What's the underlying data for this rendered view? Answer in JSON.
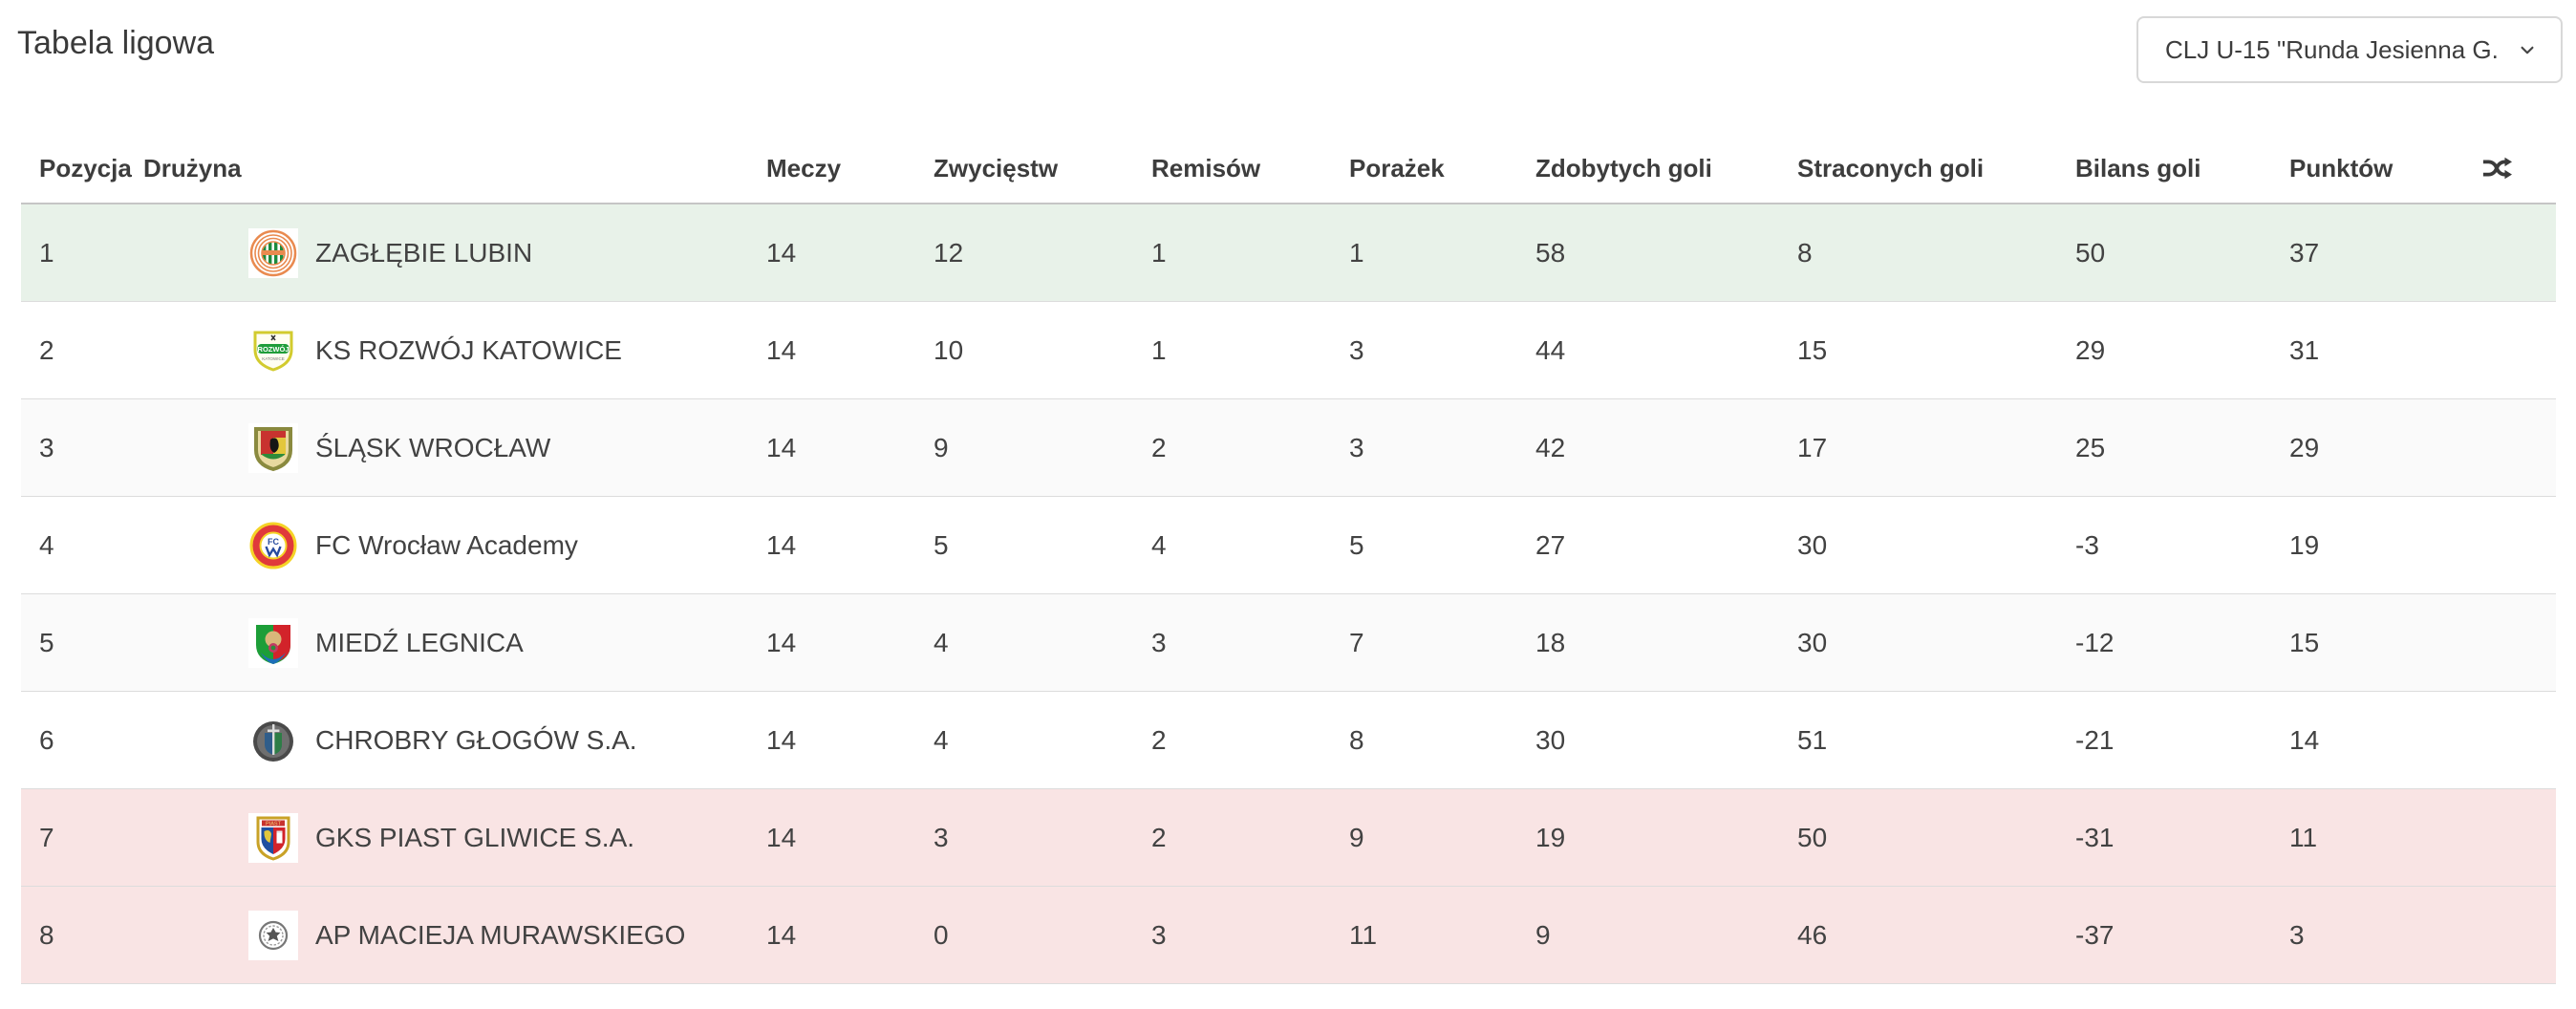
{
  "page": {
    "title": "Tabela ligowa"
  },
  "filter_dropdown": {
    "value": "CLJ U-15 \"Runda Jesienna G...",
    "chevron_icon": "chevron-down"
  },
  "colors": {
    "promotion_row_bg": "#e8f2e9",
    "relegation_row_bg": "#f9e4e4",
    "stripe_row_bg": "#fafafa",
    "default_row_bg": "#ffffff",
    "header_border": "#c5c5c5",
    "row_divider": "#dcdcdc",
    "text": "#424242"
  },
  "table": {
    "columns": [
      {
        "key": "position",
        "label": "Pozycja"
      },
      {
        "key": "team",
        "label": "Drużyna"
      },
      {
        "key": "matches",
        "label": "Meczy"
      },
      {
        "key": "wins",
        "label": "Zwycięstw"
      },
      {
        "key": "draws",
        "label": "Remisów"
      },
      {
        "key": "losses",
        "label": "Porażek"
      },
      {
        "key": "goals_for",
        "label": "Zdobytych goli"
      },
      {
        "key": "goals_against",
        "label": "Straconych goli"
      },
      {
        "key": "goal_balance",
        "label": "Bilans goli"
      },
      {
        "key": "points",
        "label": "Punktów"
      }
    ],
    "shuffle_icon": "shuffle",
    "rows": [
      {
        "position": "1",
        "team": "ZAGŁĘBIE LUBIN",
        "logo": "zaglebie-lubin-logo",
        "matches": "14",
        "wins": "12",
        "draws": "1",
        "losses": "1",
        "goals_for": "58",
        "goals_against": "8",
        "goal_balance": "50",
        "points": "37",
        "zone": "promotion"
      },
      {
        "position": "2",
        "team": "KS ROZWÓJ KATOWICE",
        "logo": "rozwoj-katowice-logo",
        "matches": "14",
        "wins": "10",
        "draws": "1",
        "losses": "3",
        "goals_for": "44",
        "goals_against": "15",
        "goal_balance": "29",
        "points": "31",
        "zone": "none"
      },
      {
        "position": "3",
        "team": "ŚLĄSK WROCŁAW",
        "logo": "slask-wroclaw-logo",
        "matches": "14",
        "wins": "9",
        "draws": "2",
        "losses": "3",
        "goals_for": "42",
        "goals_against": "17",
        "goal_balance": "25",
        "points": "29",
        "zone": "none"
      },
      {
        "position": "4",
        "team": "FC Wrocław Academy",
        "logo": "fc-wroclaw-academy-logo",
        "matches": "14",
        "wins": "5",
        "draws": "4",
        "losses": "5",
        "goals_for": "27",
        "goals_against": "30",
        "goal_balance": "-3",
        "points": "19",
        "zone": "none"
      },
      {
        "position": "5",
        "team": "MIEDŹ LEGNICA",
        "logo": "miedz-legnica-logo",
        "matches": "14",
        "wins": "4",
        "draws": "3",
        "losses": "7",
        "goals_for": "18",
        "goals_against": "30",
        "goal_balance": "-12",
        "points": "15",
        "zone": "none"
      },
      {
        "position": "6",
        "team": "CHROBRY GŁOGÓW S.A.",
        "logo": "chrobry-glogow-logo",
        "matches": "14",
        "wins": "4",
        "draws": "2",
        "losses": "8",
        "goals_for": "30",
        "goals_against": "51",
        "goal_balance": "-21",
        "points": "14",
        "zone": "none"
      },
      {
        "position": "7",
        "team": "GKS PIAST GLIWICE S.A.",
        "logo": "gks-piast-gliwice-logo",
        "matches": "14",
        "wins": "3",
        "draws": "2",
        "losses": "9",
        "goals_for": "19",
        "goals_against": "50",
        "goal_balance": "-31",
        "points": "11",
        "zone": "relegation"
      },
      {
        "position": "8",
        "team": "AP MACIEJA MURAWSKIEGO",
        "logo": "ap-macieja-murawskiego-logo",
        "matches": "14",
        "wins": "0",
        "draws": "3",
        "losses": "11",
        "goals_for": "9",
        "goals_against": "46",
        "goal_balance": "-37",
        "points": "3",
        "zone": "relegation"
      }
    ]
  }
}
